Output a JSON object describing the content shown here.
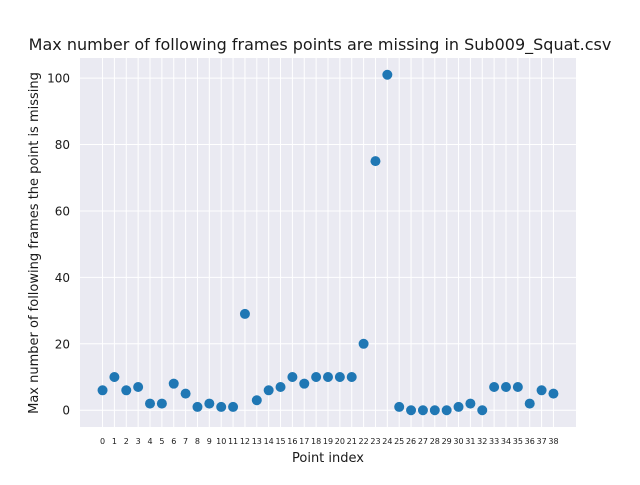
{
  "chart_data": {
    "type": "scatter",
    "title": "Max number of following frames points are missing in Sub009_Squat.csv",
    "xlabel": "Point index",
    "ylabel": "Max number of following frames the point is missing",
    "x": [
      0,
      1,
      2,
      3,
      4,
      5,
      6,
      7,
      8,
      9,
      10,
      11,
      12,
      13,
      14,
      15,
      16,
      17,
      18,
      19,
      20,
      21,
      22,
      23,
      24,
      25,
      26,
      27,
      28,
      29,
      30,
      31,
      32,
      33,
      34,
      35,
      36,
      37,
      38
    ],
    "x_tick_labels": [
      "0",
      "1",
      "2",
      "3",
      "4",
      "5",
      "6",
      "7",
      "8",
      "9",
      "10",
      "11",
      "12",
      "13",
      "14",
      "15",
      "16",
      "17",
      "18",
      "19",
      "20",
      "21",
      "22",
      "23",
      "24",
      "25",
      "26",
      "27",
      "28",
      "29",
      "30",
      "31",
      "32",
      "33",
      "34",
      "35",
      "36",
      "37",
      "38"
    ],
    "y": [
      6,
      10,
      6,
      7,
      2,
      2,
      8,
      5,
      1,
      2,
      1,
      1,
      29,
      3,
      6,
      7,
      10,
      8,
      10,
      10,
      10,
      10,
      20,
      75,
      101,
      1,
      0,
      0,
      0,
      0,
      1,
      2,
      0,
      7,
      7,
      7,
      2,
      6,
      5
    ],
    "y_ticks": [
      0,
      20,
      40,
      60,
      80,
      100
    ],
    "y_tick_labels": [
      "0",
      "20",
      "40",
      "60",
      "80",
      "100"
    ],
    "xlim": [
      -1.9,
      39.9
    ],
    "ylim": [
      -5.05,
      106.05
    ],
    "grid": true,
    "marker_color": "#1f77b4",
    "background_color": "#eaeaf2"
  }
}
